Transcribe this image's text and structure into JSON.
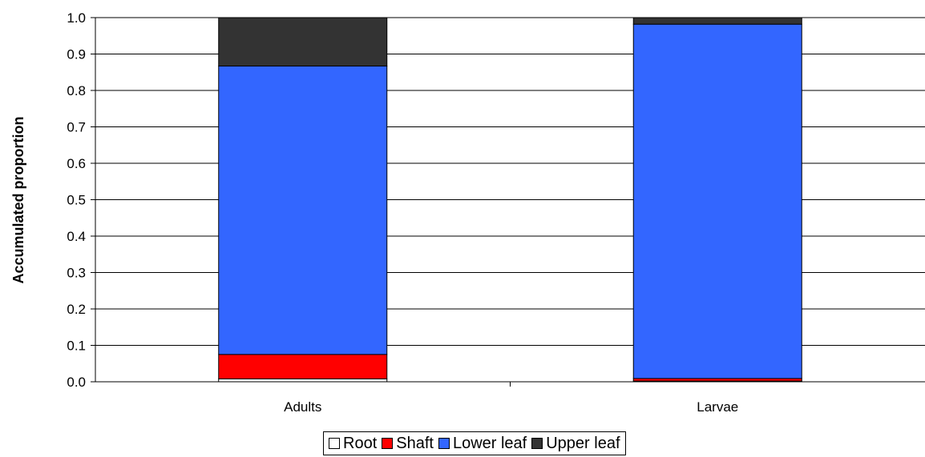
{
  "chart_data": {
    "type": "bar",
    "stacked": true,
    "categories": [
      "Adults",
      "Larvae"
    ],
    "series": [
      {
        "name": "Root",
        "color": "#ffffff",
        "values": [
          0.008,
          0.002
        ]
      },
      {
        "name": "Shaft",
        "color": "#ff0000",
        "values": [
          0.067,
          0.007
        ]
      },
      {
        "name": "Lower leaf",
        "color": "#3366ff",
        "values": [
          0.792,
          0.973
        ]
      },
      {
        "name": "Upper leaf",
        "color": "#333333",
        "values": [
          0.133,
          0.018
        ]
      }
    ],
    "ylabel": "Accumulated proportion",
    "ylim": [
      0,
      1.0
    ],
    "yticks": [
      "0.0",
      "0.1",
      "0.2",
      "0.3",
      "0.4",
      "0.5",
      "0.6",
      "0.7",
      "0.8",
      "0.9",
      "1.0"
    ],
    "grid": true,
    "legend_position": "bottom"
  }
}
